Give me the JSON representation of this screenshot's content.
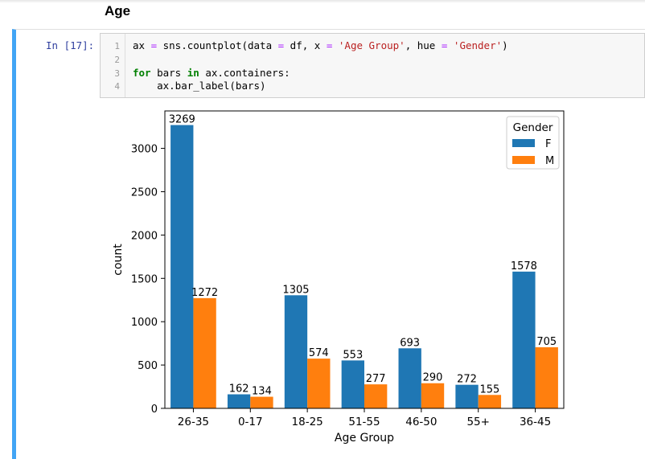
{
  "heading": "Age",
  "cell": {
    "prompt": "In [17]:",
    "line_numbers": [
      "1",
      "2",
      "3",
      "4"
    ],
    "code": {
      "l1_a": "ax ",
      "l1_b": "=",
      "l1_c": " sns.countplot(data ",
      "l1_d": "=",
      "l1_e": " df, x ",
      "l1_f": "=",
      "l1_g": " ",
      "l1_h": "'Age Group'",
      "l1_i": ", hue ",
      "l1_j": "=",
      "l1_k": " ",
      "l1_l": "'Gender'",
      "l1_m": ")",
      "l3_a": "for",
      "l3_b": " bars ",
      "l3_c": "in",
      "l3_d": " ax.containers:",
      "l4": "    ax.bar_label(bars)"
    }
  },
  "chart_data": {
    "type": "bar",
    "categories": [
      "26-35",
      "0-17",
      "18-25",
      "51-55",
      "46-50",
      "55+",
      "36-45"
    ],
    "series": [
      {
        "name": "F",
        "values": [
          3269,
          162,
          1305,
          553,
          693,
          272,
          1578
        ],
        "color": "#1f77b4"
      },
      {
        "name": "M",
        "values": [
          1272,
          134,
          574,
          277,
          290,
          155,
          705
        ],
        "color": "#ff7f0e"
      }
    ],
    "xlabel": "Age Group",
    "ylabel": "count",
    "yticks": [
      0,
      500,
      1000,
      1500,
      2000,
      2500,
      3000
    ],
    "ylim": [
      0,
      3432
    ],
    "legend": {
      "title": "Gender",
      "placement": "top-right"
    },
    "bar_labels": true,
    "grid": false
  }
}
